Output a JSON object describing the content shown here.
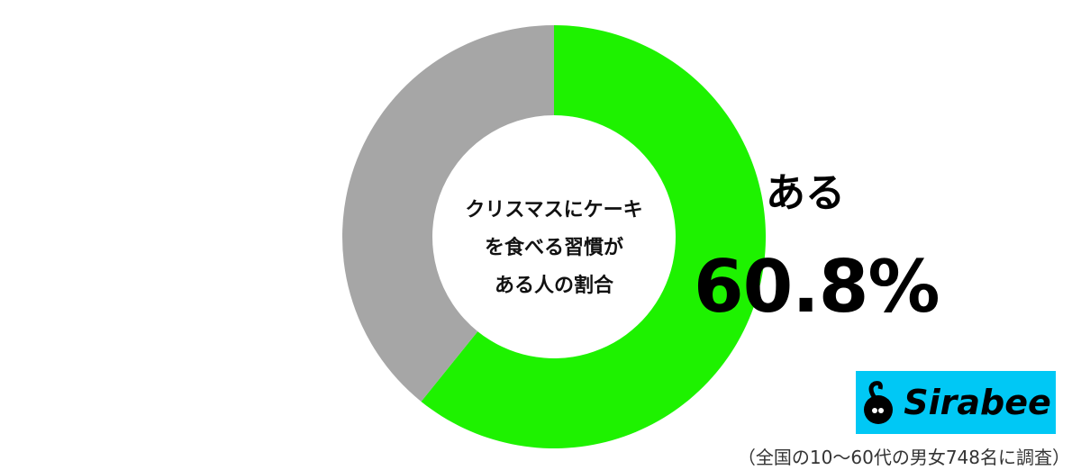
{
  "chart_data": {
    "type": "pie",
    "title": "クリスマスにケーキを食べる習慣がある人の割合",
    "title_lines": [
      "クリスマスにケーキ",
      "を食べる習慣が",
      "ある人の割合"
    ],
    "slices": [
      {
        "label": "ある",
        "value": 60.8,
        "color": "#1ef200"
      },
      {
        "value": 39.2,
        "color": "#a6a6a6"
      }
    ],
    "highlight": {
      "label": "ある",
      "value_text": "60.8%"
    },
    "donut": true
  },
  "brand": {
    "logo_text": "Sirabee",
    "color": "#00c8f5"
  },
  "footnote": "（全国の10〜60代の男女748名に調査）"
}
